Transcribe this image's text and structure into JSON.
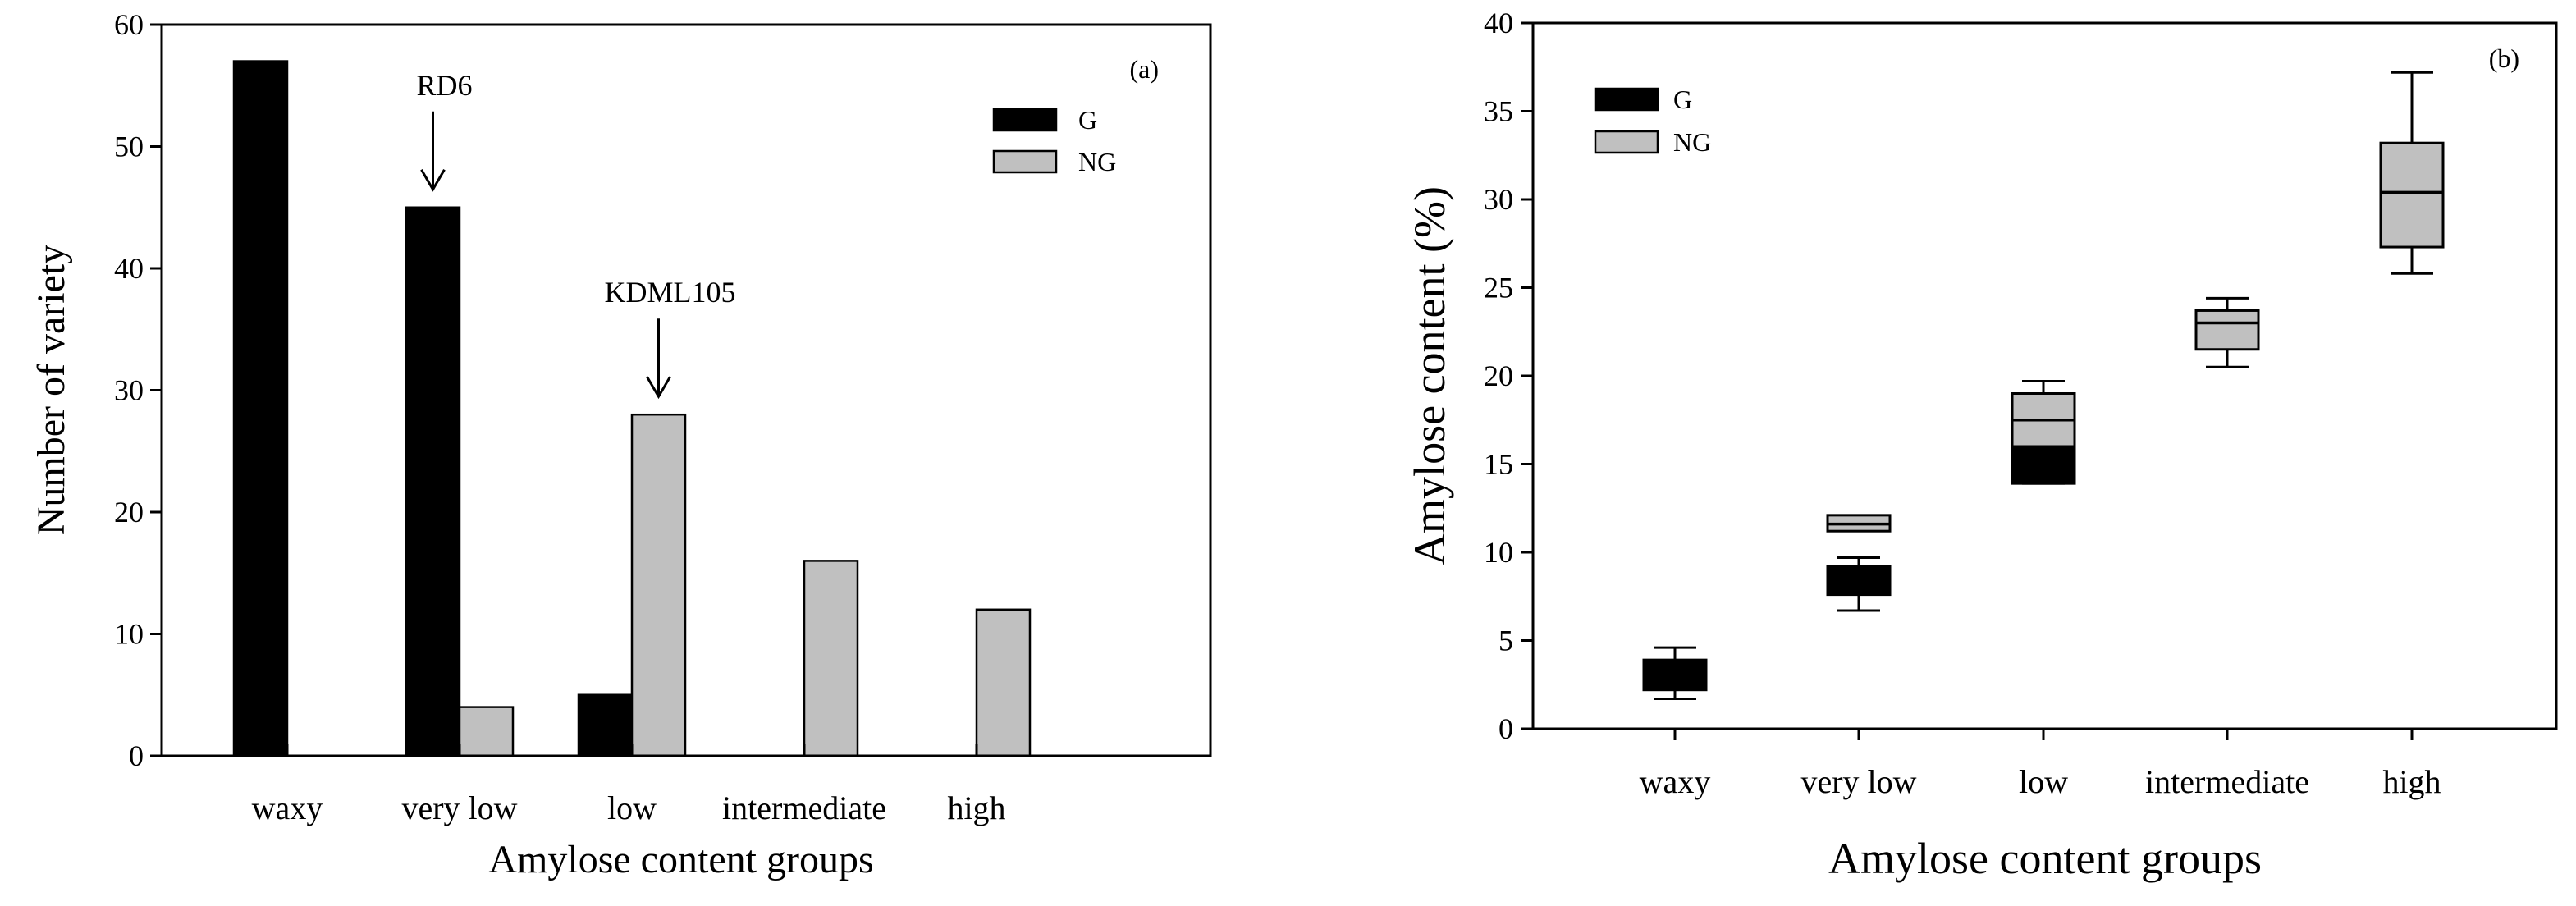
{
  "chart_data": [
    {
      "panel": "(a)",
      "type": "bar",
      "title": "",
      "xlabel": "Amylose content groups",
      "ylabel": "Number of variety",
      "ylim": [
        0,
        60
      ],
      "yticks": [
        0,
        10,
        20,
        30,
        40,
        50,
        60
      ],
      "categories": [
        "waxy",
        "very low",
        "low",
        "intermediate",
        "high"
      ],
      "series": [
        {
          "name": "G",
          "color": "#000000",
          "values": [
            57,
            45,
            5,
            null,
            null
          ]
        },
        {
          "name": "NG",
          "color": "#c0c0c0",
          "values": [
            null,
            4,
            28,
            16,
            12
          ]
        }
      ],
      "legend": {
        "position": "top-right",
        "entries": [
          "G",
          "NG"
        ]
      },
      "annotations": [
        {
          "text": "RD6",
          "category": "very low",
          "series": "G"
        },
        {
          "text": "KDML105",
          "category": "low",
          "series": "NG"
        }
      ]
    },
    {
      "panel": "(b)",
      "type": "box",
      "title": "",
      "xlabel": "Amylose content groups",
      "ylabel": "Amylose content (%)",
      "ylim": [
        0,
        40
      ],
      "yticks": [
        0,
        5,
        10,
        15,
        20,
        25,
        30,
        35,
        40
      ],
      "categories": [
        "waxy",
        "very low",
        "low",
        "intermediate",
        "high"
      ],
      "legend": {
        "position": "top-left",
        "entries": [
          "G",
          "NG"
        ]
      },
      "boxes": [
        {
          "category": "waxy",
          "series": "G",
          "color": "#000000",
          "min": 1.7,
          "q1": 2.2,
          "median": 3.0,
          "q3": 3.9,
          "max": 4.6
        },
        {
          "category": "very low",
          "series": "G",
          "color": "#000000",
          "min": 6.7,
          "q1": 7.6,
          "median": 8.4,
          "q3": 9.2,
          "max": 9.7
        },
        {
          "category": "very low",
          "series": "NG",
          "color": "#c0c0c0",
          "min": 11.2,
          "q1": 11.2,
          "median": 11.6,
          "q3": 12.1,
          "max": 12.1
        },
        {
          "category": "low",
          "series": "G",
          "color": "#000000",
          "min": 13.9,
          "q1": 13.9,
          "median": 14.5,
          "q3": 16.0,
          "max": 16.0
        },
        {
          "category": "low",
          "series": "NG",
          "color": "#c0c0c0",
          "min": 13.9,
          "q1": 16.0,
          "median": 17.5,
          "q3": 19.0,
          "max": 19.7
        },
        {
          "category": "intermediate",
          "series": "NG",
          "color": "#c0c0c0",
          "min": 20.5,
          "q1": 21.5,
          "median": 23.0,
          "q3": 23.7,
          "max": 24.4
        },
        {
          "category": "high",
          "series": "NG",
          "color": "#c0c0c0",
          "min": 25.8,
          "q1": 27.3,
          "median": 30.4,
          "q3": 33.2,
          "max": 37.2
        }
      ]
    }
  ]
}
